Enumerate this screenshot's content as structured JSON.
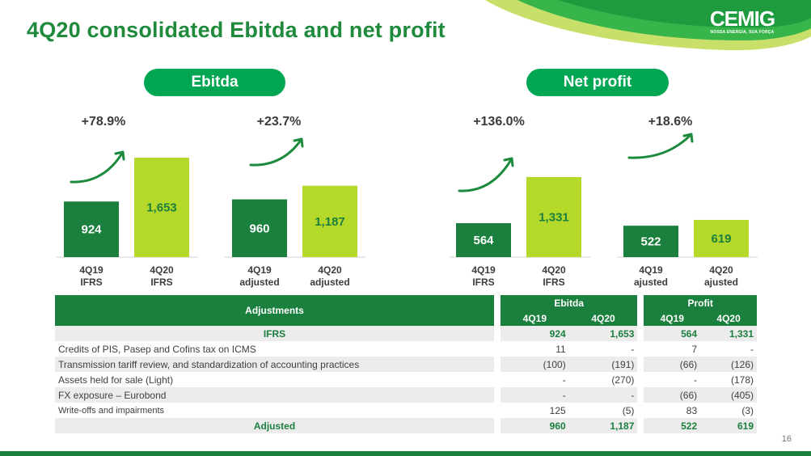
{
  "title": "4Q20 consolidated Ebitda and net profit",
  "logo": {
    "brand": "CEMIG",
    "tagline": "NOSSA ENERGIA, SUA FORÇA"
  },
  "page_number": "16",
  "colors": {
    "dark_green": "#1b7f3e",
    "lime": "#b5d92a",
    "pill": "#00a651",
    "title": "#1f8a3c"
  },
  "sections": {
    "ebitda": "Ebitda",
    "net_profit": "Net profit"
  },
  "chart_data": [
    {
      "type": "bar",
      "group": "Ebitda",
      "categories": [
        "4Q19\nIFRS",
        "4Q20\nIFRS"
      ],
      "values": [
        924,
        1653
      ],
      "value_labels": [
        "924",
        "1,653"
      ],
      "change": "+78.9%"
    },
    {
      "type": "bar",
      "group": "Ebitda",
      "categories": [
        "4Q19\nadjusted",
        "4Q20\nadjusted"
      ],
      "values": [
        960,
        1187
      ],
      "value_labels": [
        "960",
        "1,187"
      ],
      "change": "+23.7%"
    },
    {
      "type": "bar",
      "group": "Net profit",
      "categories": [
        "4Q19\nIFRS",
        "4Q20\nIFRS"
      ],
      "values": [
        564,
        1331
      ],
      "value_labels": [
        "564",
        "1,331"
      ],
      "change": "+136.0%"
    },
    {
      "type": "bar",
      "group": "Net profit",
      "categories": [
        "4Q19\najusted",
        "4Q20\najusted"
      ],
      "values": [
        522,
        619
      ],
      "value_labels": [
        "522",
        "619"
      ],
      "change": "+18.6%"
    }
  ],
  "table": {
    "col_header": "Adjustments",
    "group_ebitda": "Ebitda",
    "group_profit": "Profit",
    "sub": [
      "4Q19",
      "4Q20",
      "4Q19",
      "4Q20"
    ],
    "rows": [
      {
        "label": "IFRS",
        "vals": [
          "924",
          "1,653",
          "564",
          "1,331"
        ],
        "style": "total"
      },
      {
        "label": "Credits of PIS, Pasep and Cofins tax on ICMS",
        "vals": [
          "11",
          "-",
          "7",
          "-"
        ],
        "style": "plain"
      },
      {
        "label": "Transmission tariff review, and standardization of accounting practices",
        "vals": [
          "(100)",
          "(191)",
          "(66)",
          "(126)"
        ],
        "style": "plain"
      },
      {
        "label": "Assets held for sale (Light)",
        "vals": [
          "-",
          "(270)",
          "-",
          "(178)"
        ],
        "style": "plain"
      },
      {
        "label": "FX exposure – Eurobond",
        "vals": [
          "-",
          "-",
          "(66)",
          "(405)"
        ],
        "style": "plain"
      },
      {
        "label": " Write-offs and impairments",
        "vals": [
          "125",
          "(5)",
          "83",
          "(3)"
        ],
        "style": "small"
      },
      {
        "label": "Adjusted",
        "vals": [
          "960",
          "1,187",
          "522",
          "619"
        ],
        "style": "total"
      }
    ]
  }
}
